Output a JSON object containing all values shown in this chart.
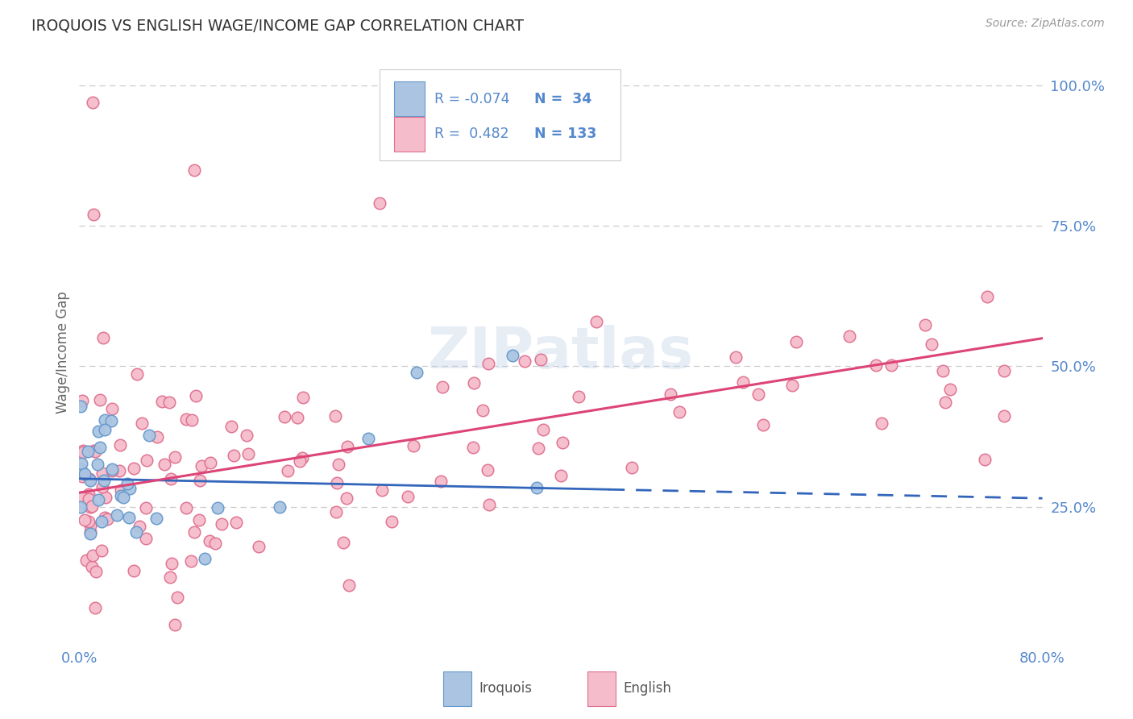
{
  "title": "IROQUOIS VS ENGLISH WAGE/INCOME GAP CORRELATION CHART",
  "source": "Source: ZipAtlas.com",
  "ylabel": "Wage/Income Gap",
  "iroquois_color": "#aac4e2",
  "iroquois_edge_color": "#6699cc",
  "english_color": "#f5bccb",
  "english_edge_color": "#e07090",
  "iroquois_line_color": "#3366bb",
  "english_line_color": "#dd4477",
  "background_color": "#ffffff",
  "grid_color": "#cccccc",
  "title_color": "#333333",
  "axis_label_color": "#5588cc",
  "legend_text_color": "#5588cc",
  "watermark": "ZIPatlas",
  "xlim": [
    0.0,
    0.8
  ],
  "ylim": [
    0.0,
    1.05
  ],
  "yticks": [
    0.25,
    0.5,
    0.75,
    1.0
  ],
  "ytick_labels": [
    "25.0%",
    "50.0%",
    "75.0%",
    "100.0%"
  ],
  "xtick_labels": [
    "0.0%",
    "80.0%"
  ],
  "r_iroquois": -0.074,
  "n_iroquois": 34,
  "r_english": 0.482,
  "n_english": 133,
  "iroquois_line_start_y": 0.3,
  "iroquois_line_end_y": 0.265,
  "english_line_start_y": 0.275,
  "english_line_end_y": 0.55
}
